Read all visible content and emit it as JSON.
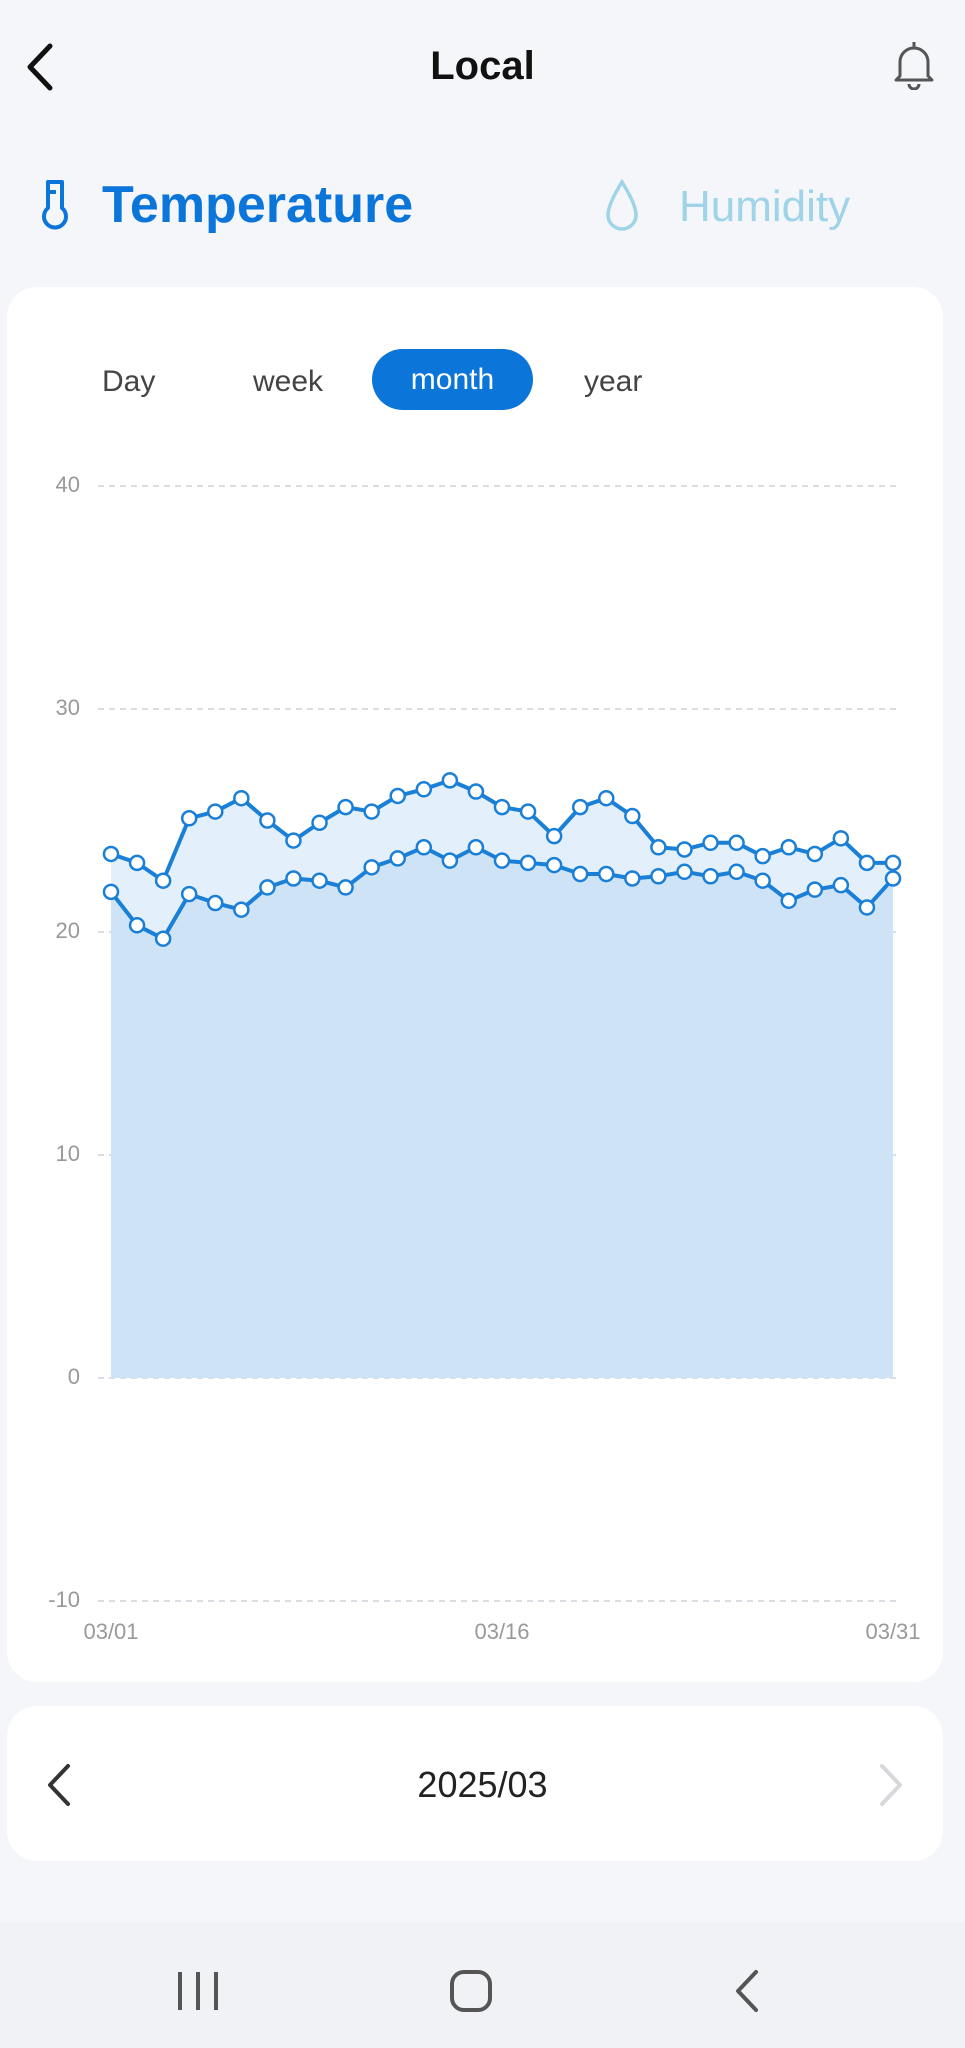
{
  "header": {
    "title": "Local"
  },
  "tabs": [
    "Temperature",
    "Humidity"
  ],
  "periods": [
    "Day",
    "week",
    "month",
    "year"
  ],
  "chart_data": {
    "type": "area-line",
    "categories": [
      "03/01",
      null,
      null,
      null,
      null,
      null,
      null,
      null,
      null,
      null,
      null,
      null,
      null,
      null,
      null,
      "03/16",
      null,
      null,
      null,
      null,
      null,
      null,
      null,
      null,
      null,
      null,
      null,
      null,
      null,
      null,
      "03/31"
    ],
    "series": [
      {
        "color": "#1a7fd6",
        "values": [
          23.5,
          23.1,
          22.3,
          25.1,
          25.4,
          26.0,
          25.0,
          24.1,
          24.9,
          25.6,
          25.4,
          26.1,
          26.4,
          26.8,
          26.3,
          25.6,
          25.4,
          24.3,
          25.6,
          26.0,
          25.2,
          23.8,
          23.7,
          24.0,
          24.0,
          23.4,
          23.8,
          23.5,
          24.2,
          23.1,
          23.1
        ]
      },
      {
        "color": "#1a7fd6",
        "values": [
          21.8,
          20.3,
          19.7,
          21.7,
          21.3,
          21.0,
          22.0,
          22.4,
          22.3,
          22.0,
          22.9,
          23.3,
          23.8,
          23.2,
          23.8,
          23.2,
          23.1,
          23.0,
          22.6,
          22.6,
          22.4,
          22.5,
          22.7,
          22.5,
          22.7,
          22.3,
          21.4,
          21.9,
          22.1,
          21.1,
          22.4
        ]
      }
    ],
    "ylim": [
      -10,
      40
    ],
    "yticks": [
      -10,
      0,
      10,
      20,
      30,
      40
    ],
    "grid": true
  },
  "footer": {
    "period": "2025/03"
  }
}
